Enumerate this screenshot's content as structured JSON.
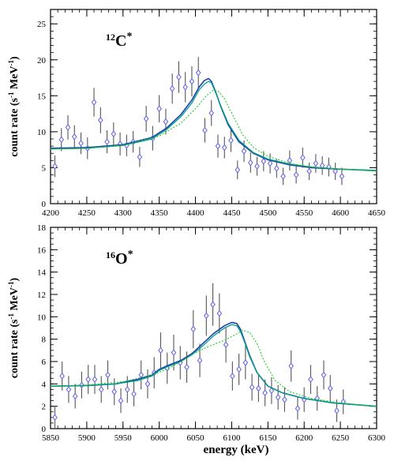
{
  "figure": {
    "xlabel": "energy (keV)"
  },
  "chart_data": [
    {
      "type": "scatter",
      "panel": "top",
      "label_main": "C",
      "label_mass": "12",
      "label_star": "*",
      "ylabel_text": "count rate (s",
      "ylabel_exp1": "-1",
      "ylabel_mid": " MeV",
      "ylabel_exp2": "-1",
      "ylabel_end": ")",
      "xlim": [
        4200,
        4650
      ],
      "ylim": [
        0,
        27
      ],
      "x_ticks": [
        4200,
        4250,
        4300,
        4350,
        4400,
        4450,
        4500,
        4550,
        4600,
        4650
      ],
      "y_ticks": [
        0,
        5,
        10,
        15,
        20,
        25
      ],
      "x_minor_step": 10,
      "y_minor_step": 1,
      "x_err": 3,
      "points": [
        {
          "x": 4206,
          "y": 5.2,
          "e": 1.5
        },
        {
          "x": 4215,
          "y": 8.9,
          "e": 1.6
        },
        {
          "x": 4224,
          "y": 10.6,
          "e": 1.7
        },
        {
          "x": 4233,
          "y": 9.3,
          "e": 1.6
        },
        {
          "x": 4242,
          "y": 8.4,
          "e": 1.5
        },
        {
          "x": 4251,
          "y": 7.7,
          "e": 1.5
        },
        {
          "x": 4260,
          "y": 14.1,
          "e": 2.0
        },
        {
          "x": 4269,
          "y": 11.6,
          "e": 1.8
        },
        {
          "x": 4278,
          "y": 8.6,
          "e": 1.6
        },
        {
          "x": 4287,
          "y": 9.7,
          "e": 1.6
        },
        {
          "x": 4296,
          "y": 8.3,
          "e": 1.6
        },
        {
          "x": 4305,
          "y": 8.1,
          "e": 1.5
        },
        {
          "x": 4314,
          "y": 8.6,
          "e": 1.5
        },
        {
          "x": 4323,
          "y": 6.5,
          "e": 1.4
        },
        {
          "x": 4332,
          "y": 11.8,
          "e": 1.8
        },
        {
          "x": 4341,
          "y": 9.1,
          "e": 1.7
        },
        {
          "x": 4350,
          "y": 13.2,
          "e": 1.9
        },
        {
          "x": 4359,
          "y": 11.4,
          "e": 1.8
        },
        {
          "x": 4368,
          "y": 16.0,
          "e": 2.1
        },
        {
          "x": 4377,
          "y": 17.6,
          "e": 2.2
        },
        {
          "x": 4386,
          "y": 16.2,
          "e": 2.1
        },
        {
          "x": 4395,
          "y": 17.0,
          "e": 2.1
        },
        {
          "x": 4404,
          "y": 18.2,
          "e": 2.2
        },
        {
          "x": 4413,
          "y": 10.2,
          "e": 1.7
        },
        {
          "x": 4422,
          "y": 12.6,
          "e": 1.8
        },
        {
          "x": 4431,
          "y": 8.0,
          "e": 1.6
        },
        {
          "x": 4440,
          "y": 7.8,
          "e": 1.5
        },
        {
          "x": 4449,
          "y": 8.8,
          "e": 1.6
        },
        {
          "x": 4458,
          "y": 4.7,
          "e": 1.3
        },
        {
          "x": 4467,
          "y": 7.3,
          "e": 1.5
        },
        {
          "x": 4476,
          "y": 5.7,
          "e": 1.4
        },
        {
          "x": 4485,
          "y": 5.2,
          "e": 1.3
        },
        {
          "x": 4494,
          "y": 5.9,
          "e": 1.4
        },
        {
          "x": 4503,
          "y": 5.6,
          "e": 1.4
        },
        {
          "x": 4512,
          "y": 4.9,
          "e": 1.3
        },
        {
          "x": 4521,
          "y": 3.8,
          "e": 1.2
        },
        {
          "x": 4530,
          "y": 6.0,
          "e": 1.4
        },
        {
          "x": 4539,
          "y": 4.0,
          "e": 1.2
        },
        {
          "x": 4548,
          "y": 6.4,
          "e": 1.4
        },
        {
          "x": 4557,
          "y": 4.5,
          "e": 1.2
        },
        {
          "x": 4566,
          "y": 5.6,
          "e": 1.3
        },
        {
          "x": 4575,
          "y": 5.3,
          "e": 1.3
        },
        {
          "x": 4584,
          "y": 5.1,
          "e": 1.3
        },
        {
          "x": 4593,
          "y": 4.5,
          "e": 1.2
        },
        {
          "x": 4602,
          "y": 3.8,
          "e": 1.2
        }
      ],
      "curves": [
        {
          "color": "#1f3fb0",
          "width": 1.6,
          "dash": "",
          "x": [
            4200,
            4250,
            4300,
            4340,
            4360,
            4380,
            4395,
            4405,
            4412,
            4418,
            4422,
            4428,
            4435,
            4445,
            4460,
            4480,
            4500,
            4530,
            4560,
            4600,
            4650
          ],
          "y": [
            7.7,
            7.8,
            8.2,
            9.2,
            10.5,
            12.4,
            14.4,
            16.2,
            17.1,
            17.4,
            17.0,
            15.5,
            13.5,
            11.0,
            8.6,
            7.0,
            6.1,
            5.4,
            5.0,
            4.8,
            4.6
          ]
        },
        {
          "color": "#00a08a",
          "width": 1.3,
          "dash": "",
          "x": [
            4200,
            4250,
            4300,
            4340,
            4360,
            4380,
            4395,
            4405,
            4412,
            4418,
            4422,
            4428,
            4435,
            4445,
            4460,
            4480,
            4500,
            4530,
            4560,
            4600,
            4650
          ],
          "y": [
            7.6,
            7.7,
            8.1,
            9.0,
            10.3,
            12.1,
            14.0,
            15.8,
            16.6,
            17.0,
            16.8,
            15.4,
            13.6,
            11.2,
            8.8,
            7.1,
            6.2,
            5.5,
            5.1,
            4.8,
            4.6
          ]
        },
        {
          "color": "#22cc22",
          "width": 1.1,
          "dash": "2,2",
          "x": [
            4200,
            4250,
            4300,
            4350,
            4380,
            4400,
            4415,
            4425,
            4432,
            4440,
            4450,
            4465,
            4480,
            4500,
            4530,
            4560,
            4600,
            4650
          ],
          "y": [
            7.6,
            7.7,
            8.1,
            9.4,
            11.2,
            13.2,
            15.0,
            15.8,
            15.6,
            14.6,
            12.6,
            9.6,
            7.8,
            6.6,
            5.6,
            5.1,
            4.8,
            4.5
          ]
        }
      ]
    },
    {
      "type": "scatter",
      "panel": "bottom",
      "label_main": "O",
      "label_mass": "16",
      "label_star": "*",
      "ylabel_text": "count rate (s",
      "ylabel_exp1": "-1",
      "ylabel_mid": " MeV",
      "ylabel_exp2": "-1",
      "ylabel_end": ")",
      "xlim": [
        5850,
        6300
      ],
      "ylim": [
        0,
        18
      ],
      "x_ticks": [
        5850,
        5900,
        5950,
        6000,
        6050,
        6100,
        6150,
        6200,
        6250,
        6300
      ],
      "y_ticks": [
        0,
        2,
        4,
        6,
        8,
        10,
        12,
        14,
        16,
        18
      ],
      "x_minor_step": 10,
      "y_minor_step": 0.5,
      "x_err": 3,
      "points": [
        {
          "x": 5856,
          "y": 1.0,
          "e": 1.0
        },
        {
          "x": 5866,
          "y": 4.7,
          "e": 1.3
        },
        {
          "x": 5875,
          "y": 3.5,
          "e": 1.2
        },
        {
          "x": 5884,
          "y": 2.9,
          "e": 1.1
        },
        {
          "x": 5893,
          "y": 3.9,
          "e": 1.2
        },
        {
          "x": 5902,
          "y": 4.4,
          "e": 1.3
        },
        {
          "x": 5911,
          "y": 4.4,
          "e": 1.3
        },
        {
          "x": 5920,
          "y": 3.5,
          "e": 1.2
        },
        {
          "x": 5929,
          "y": 4.8,
          "e": 1.3
        },
        {
          "x": 5938,
          "y": 3.3,
          "e": 1.2
        },
        {
          "x": 5947,
          "y": 2.5,
          "e": 1.1
        },
        {
          "x": 5956,
          "y": 3.5,
          "e": 1.2
        },
        {
          "x": 5965,
          "y": 3.1,
          "e": 1.1
        },
        {
          "x": 5975,
          "y": 4.8,
          "e": 1.3
        },
        {
          "x": 5984,
          "y": 4.0,
          "e": 1.3
        },
        {
          "x": 5993,
          "y": 5.0,
          "e": 1.4
        },
        {
          "x": 6002,
          "y": 7.0,
          "e": 1.6
        },
        {
          "x": 6011,
          "y": 5.4,
          "e": 1.4
        },
        {
          "x": 6020,
          "y": 6.8,
          "e": 1.6
        },
        {
          "x": 6029,
          "y": 5.9,
          "e": 1.5
        },
        {
          "x": 6038,
          "y": 5.5,
          "e": 1.4
        },
        {
          "x": 6047,
          "y": 8.9,
          "e": 1.7
        },
        {
          "x": 6056,
          "y": 6.1,
          "e": 1.5
        },
        {
          "x": 6065,
          "y": 10.1,
          "e": 1.8
        },
        {
          "x": 6074,
          "y": 11.1,
          "e": 1.9
        },
        {
          "x": 6083,
          "y": 10.3,
          "e": 1.8
        },
        {
          "x": 6092,
          "y": 7.5,
          "e": 1.6
        },
        {
          "x": 6101,
          "y": 4.7,
          "e": 1.3
        },
        {
          "x": 6110,
          "y": 5.3,
          "e": 1.4
        },
        {
          "x": 6119,
          "y": 5.9,
          "e": 1.5
        },
        {
          "x": 6128,
          "y": 3.7,
          "e": 1.2
        },
        {
          "x": 6137,
          "y": 3.6,
          "e": 1.2
        },
        {
          "x": 6146,
          "y": 3.2,
          "e": 1.2
        },
        {
          "x": 6155,
          "y": 3.4,
          "e": 1.2
        },
        {
          "x": 6164,
          "y": 2.8,
          "e": 1.1
        },
        {
          "x": 6173,
          "y": 2.6,
          "e": 1.1
        },
        {
          "x": 6182,
          "y": 5.6,
          "e": 1.4
        },
        {
          "x": 6191,
          "y": 1.8,
          "e": 1.0
        },
        {
          "x": 6200,
          "y": 2.6,
          "e": 1.1
        },
        {
          "x": 6209,
          "y": 4.4,
          "e": 1.3
        },
        {
          "x": 6218,
          "y": 2.7,
          "e": 1.1
        },
        {
          "x": 6227,
          "y": 4.8,
          "e": 1.3
        },
        {
          "x": 6236,
          "y": 3.6,
          "e": 1.2
        },
        {
          "x": 6245,
          "y": 1.6,
          "e": 1.0
        },
        {
          "x": 6254,
          "y": 2.4,
          "e": 1.1
        }
      ],
      "curves": [
        {
          "color": "#1f3fb0",
          "width": 1.6,
          "dash": "",
          "x": [
            5850,
            5900,
            5940,
            5970,
            5990,
            6000,
            6010,
            6030,
            6045,
            6060,
            6075,
            6090,
            6100,
            6107,
            6112,
            6118,
            6125,
            6135,
            6150,
            6170,
            6200,
            6240,
            6300
          ],
          "y": [
            3.8,
            3.85,
            4.0,
            4.4,
            4.8,
            5.3,
            5.6,
            6.1,
            6.7,
            7.6,
            8.5,
            9.2,
            9.5,
            9.4,
            8.9,
            7.8,
            6.5,
            5.0,
            3.8,
            3.2,
            2.7,
            2.3,
            2.0
          ]
        },
        {
          "color": "#00a08a",
          "width": 1.3,
          "dash": "",
          "x": [
            5850,
            5900,
            5940,
            5970,
            5990,
            6000,
            6010,
            6030,
            6045,
            6060,
            6075,
            6090,
            6100,
            6107,
            6112,
            6118,
            6125,
            6135,
            6150,
            6170,
            6200,
            6240,
            6300
          ],
          "y": [
            3.8,
            3.85,
            4.0,
            4.3,
            4.7,
            5.2,
            5.5,
            6.0,
            6.6,
            7.4,
            8.3,
            9.0,
            9.3,
            9.2,
            8.7,
            7.7,
            6.4,
            5.0,
            3.8,
            3.2,
            2.7,
            2.3,
            2.0
          ]
        },
        {
          "color": "#22cc22",
          "width": 1.1,
          "dash": "2,2",
          "x": [
            5850,
            5900,
            5950,
            5990,
            6010,
            6030,
            6050,
            6070,
            6090,
            6105,
            6115,
            6125,
            6135,
            6145,
            6160,
            6180,
            6210,
            6250,
            6300
          ],
          "y": [
            3.8,
            3.9,
            4.2,
            4.8,
            5.3,
            6.0,
            6.8,
            7.4,
            7.9,
            8.4,
            8.8,
            8.6,
            7.6,
            6.0,
            4.3,
            3.3,
            2.7,
            2.3,
            2.0
          ]
        }
      ]
    }
  ]
}
